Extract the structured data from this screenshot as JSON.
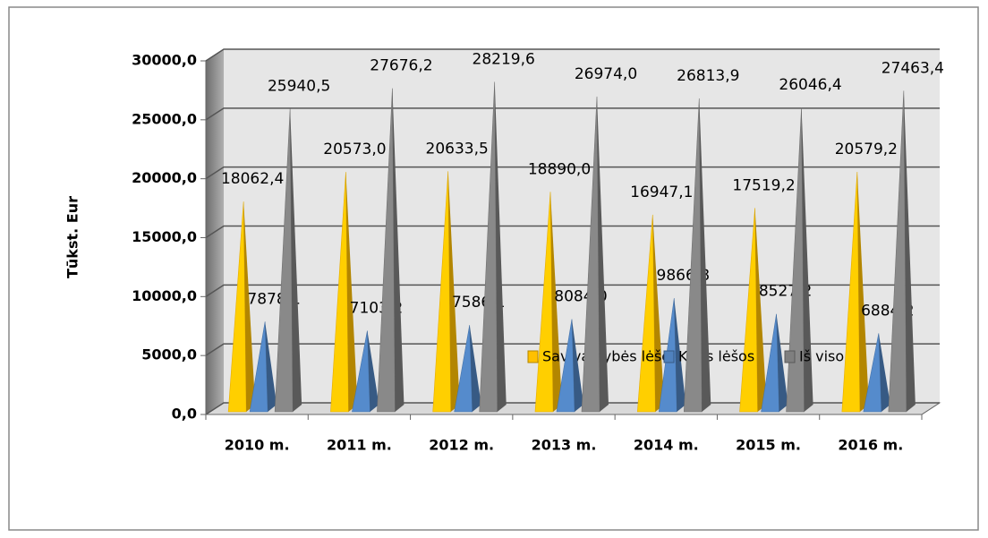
{
  "chart_data": {
    "type": "pyramid3d",
    "y_label": "Tūkst. Eur",
    "categories": [
      "2010 m.",
      "2011 m.",
      "2012 m.",
      "2013 m.",
      "2014 m.",
      "2015 m.",
      "2016 m."
    ],
    "series": [
      {
        "name": "Savivaldybės lėšos",
        "color": "#ffc000",
        "values": [
          18062.4,
          20573.0,
          20633.5,
          18890.0,
          16947.1,
          17519.2,
          20579.2
        ],
        "value_labels": [
          "18062,4",
          "20573,0",
          "20633,5",
          "18890,0",
          "16947,1",
          "17519,2",
          "20579,2"
        ]
      },
      {
        "name": "Kitos lėšos",
        "color": "#4f81bd",
        "values": [
          7878.1,
          7103.2,
          7586.1,
          8084.0,
          9866.8,
          8527.2,
          6884.2
        ],
        "value_labels": [
          "7878,1",
          "7103,2",
          "7586,1",
          "8084,0",
          "9866,8",
          "8527,2",
          "6884,2"
        ]
      },
      {
        "name": "Iš viso",
        "color": "#7f7f7f",
        "values": [
          25940.5,
          27676.2,
          28219.6,
          26974.0,
          26813.9,
          26046.4,
          27463.4
        ],
        "value_labels": [
          "25940,5",
          "27676,2",
          "28219,6",
          "26974,0",
          "26813,9",
          "26046,4",
          "27463,4"
        ]
      }
    ],
    "ylim": [
      0,
      30000
    ],
    "yticks": [
      {
        "value": 0,
        "label": "0,0"
      },
      {
        "value": 5000,
        "label": "5000,0"
      },
      {
        "value": 10000,
        "label": "10000,0"
      },
      {
        "value": 15000,
        "label": "15000,0"
      },
      {
        "value": 20000,
        "label": "20000,0"
      },
      {
        "value": 25000,
        "label": "25000,0"
      },
      {
        "value": 30000,
        "label": "30000,0"
      }
    ],
    "grid": true
  }
}
